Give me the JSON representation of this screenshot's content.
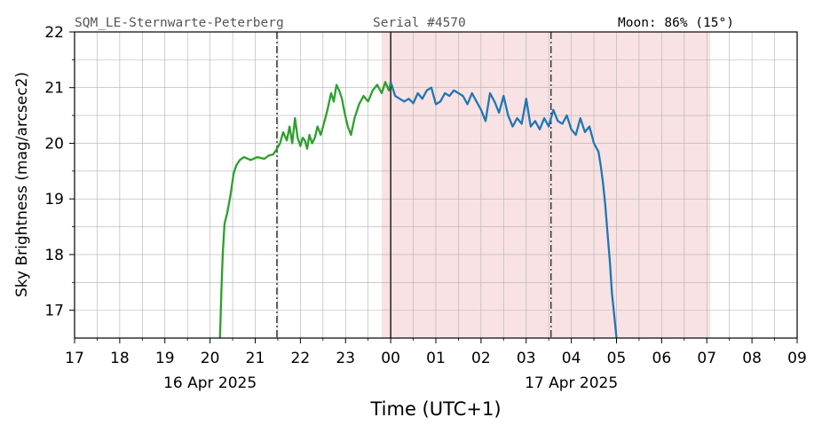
{
  "header": {
    "station": "SQM_LE-Sternwarte-Peterberg",
    "serial": "Serial #4570",
    "moon": "Moon: 86% (15°)"
  },
  "chart_data": {
    "type": "line",
    "xlabel": "Time (UTC+1)",
    "ylabel": "Sky Brightness (mag/arcsec2)",
    "x_unit": "hour of day (UTC+1); values >= 24 fall on 17 Apr 2025",
    "xlim": [
      17,
      33
    ],
    "ylim": [
      16.5,
      22
    ],
    "x_tick_labels": [
      "17",
      "18",
      "19",
      "20",
      "21",
      "22",
      "23",
      "00",
      "01",
      "02",
      "03",
      "04",
      "05",
      "06",
      "07",
      "08",
      "09"
    ],
    "y_tick_labels": [
      "17",
      "18",
      "19",
      "20",
      "21",
      "22"
    ],
    "date_labels": [
      {
        "text": "16 Apr 2025",
        "hour": 20.0
      },
      {
        "text": "17 Apr 2025",
        "hour": 28.0
      }
    ],
    "grid": true,
    "moon_shading": {
      "start": 23.8,
      "end": 31.08,
      "color": "#f9e2e3"
    },
    "midnight_line": 24.0,
    "dashdot_lines": [
      21.48,
      27.55
    ],
    "series": [
      {
        "color": "#2ca02c",
        "x": [
          20.22,
          20.25,
          20.28,
          20.32,
          20.38,
          20.45,
          20.52,
          20.58,
          20.66,
          20.75,
          20.9,
          21.05,
          21.2,
          21.3,
          21.4,
          21.48,
          21.55,
          21.62,
          21.7,
          21.76,
          21.82,
          21.88,
          21.94,
          22.0,
          22.05,
          22.1,
          22.15,
          22.2,
          22.26,
          22.32,
          22.38,
          22.45,
          22.52,
          22.6,
          22.68,
          22.74,
          22.8,
          22.86,
          22.92,
          22.98,
          23.05,
          23.12,
          23.2,
          23.3,
          23.4,
          23.5,
          23.6,
          23.7,
          23.8,
          23.88,
          23.96,
          24.0
        ],
        "y": [
          16.5,
          17.3,
          18.0,
          18.55,
          18.75,
          19.05,
          19.45,
          19.6,
          19.7,
          19.75,
          19.7,
          19.75,
          19.72,
          19.78,
          19.8,
          19.9,
          20.0,
          20.2,
          20.05,
          20.3,
          20.0,
          20.45,
          20.1,
          19.95,
          20.1,
          20.05,
          19.9,
          20.15,
          20.0,
          20.1,
          20.3,
          20.15,
          20.35,
          20.6,
          20.9,
          20.75,
          21.05,
          20.95,
          20.8,
          20.55,
          20.3,
          20.15,
          20.45,
          20.7,
          20.85,
          20.75,
          20.95,
          21.05,
          20.9,
          21.1,
          20.95,
          21.1
        ]
      },
      {
        "color": "#1f77b4",
        "x": [
          24.0,
          24.1,
          24.2,
          24.3,
          24.4,
          24.5,
          24.6,
          24.7,
          24.8,
          24.9,
          25.0,
          25.1,
          25.2,
          25.3,
          25.4,
          25.5,
          25.6,
          25.7,
          25.8,
          25.9,
          26.0,
          26.1,
          26.2,
          26.3,
          26.4,
          26.5,
          26.6,
          26.7,
          26.8,
          26.9,
          27.0,
          27.1,
          27.2,
          27.3,
          27.4,
          27.5,
          27.6,
          27.7,
          27.8,
          27.9,
          28.0,
          28.1,
          28.2,
          28.3,
          28.4,
          28.5,
          28.6,
          28.65,
          28.7,
          28.75,
          28.8,
          28.85,
          28.9,
          28.95,
          29.0
        ],
        "y": [
          21.1,
          20.85,
          20.8,
          20.75,
          20.8,
          20.72,
          20.9,
          20.8,
          20.95,
          21.0,
          20.7,
          20.75,
          20.9,
          20.85,
          20.95,
          20.9,
          20.85,
          20.7,
          20.9,
          20.75,
          20.6,
          20.4,
          20.9,
          20.75,
          20.55,
          20.85,
          20.5,
          20.3,
          20.45,
          20.35,
          20.8,
          20.3,
          20.4,
          20.25,
          20.45,
          20.3,
          20.6,
          20.4,
          20.35,
          20.5,
          20.25,
          20.15,
          20.45,
          20.2,
          20.3,
          20.0,
          19.85,
          19.6,
          19.3,
          18.9,
          18.4,
          17.9,
          17.3,
          16.9,
          16.5
        ]
      }
    ]
  }
}
